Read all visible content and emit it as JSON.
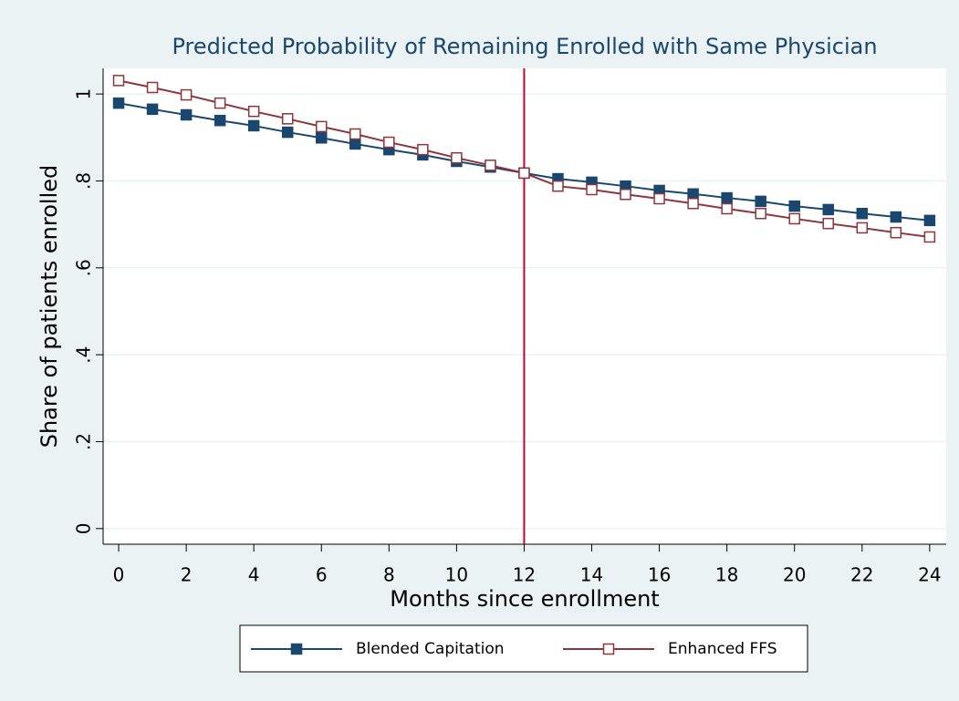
{
  "chart_data": {
    "type": "line",
    "title": "Predicted Probability of Remaining Enrolled with Same Physician",
    "x_label": "Months since enrollment",
    "y_label": "Share of patients enrolled",
    "x": [
      0,
      1,
      2,
      3,
      4,
      5,
      6,
      7,
      8,
      9,
      10,
      11,
      12,
      13,
      14,
      15,
      16,
      17,
      18,
      19,
      20,
      21,
      22,
      23,
      24
    ],
    "series": [
      {
        "name": "Blended Capitation",
        "color": "#1a476f",
        "marker": "filled-square",
        "values": [
          0.979,
          0.965,
          0.952,
          0.939,
          0.927,
          0.912,
          0.899,
          0.885,
          0.872,
          0.86,
          0.845,
          0.832,
          0.818,
          0.805,
          0.797,
          0.788,
          0.778,
          0.77,
          0.761,
          0.753,
          0.742,
          0.734,
          0.725,
          0.717,
          0.709
        ]
      },
      {
        "name": "Enhanced FFS",
        "color": "#90353b",
        "marker": "hollow-square",
        "values": [
          1.031,
          1.015,
          0.998,
          0.979,
          0.96,
          0.943,
          0.925,
          0.908,
          0.889,
          0.872,
          0.853,
          0.836,
          0.818,
          0.788,
          0.78,
          0.769,
          0.759,
          0.748,
          0.736,
          0.725,
          0.713,
          0.702,
          0.692,
          0.681,
          0.671
        ]
      }
    ],
    "xlim": [
      -0.46,
      24.49
    ],
    "ylim": [
      -0.036,
      1.059
    ],
    "xticks": [
      0,
      2,
      4,
      6,
      8,
      10,
      12,
      14,
      16,
      18,
      20,
      22,
      24
    ],
    "yticks": [
      0,
      {
        "value": 0.2,
        "label": ".2"
      },
      {
        "value": 0.4,
        "label": ".4"
      },
      {
        "value": 0.6,
        "label": ".6"
      },
      {
        "value": 0.8,
        "label": ".8"
      },
      1
    ],
    "grid": true,
    "vline": 12,
    "vline_color": "#c10534",
    "legend": "bottom"
  }
}
